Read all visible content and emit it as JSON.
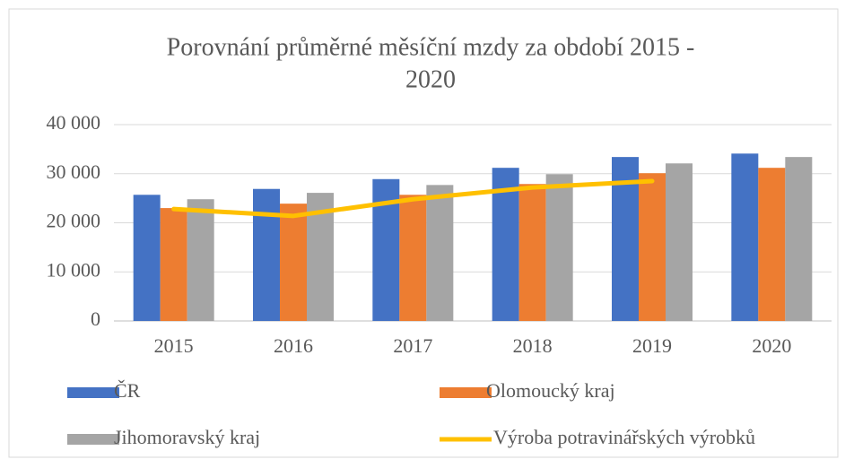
{
  "chart_data": {
    "type": "bar_line",
    "title": [
      "Porovnání průměrné měsíční mzdy za období 2015 -",
      "2020"
    ],
    "categories": [
      "2015",
      "2016",
      "2017",
      "2018",
      "2019",
      "2020"
    ],
    "series": [
      {
        "name": "ČR",
        "type": "bar",
        "color": "#4472c4",
        "values": [
          25700,
          26900,
          28900,
          31200,
          33400,
          34100
        ]
      },
      {
        "name": "Olomoucký kraj",
        "type": "bar",
        "color": "#ed7d31",
        "values": [
          23000,
          23900,
          25700,
          27900,
          30100,
          31200
        ]
      },
      {
        "name": "Jihomoravský kraj",
        "type": "bar",
        "color": "#a5a5a5",
        "values": [
          24800,
          26100,
          27700,
          29900,
          32100,
          33400
        ]
      },
      {
        "name": "Výroba potravinářských výrobků",
        "type": "line",
        "color": "#ffc000",
        "values": [
          22800,
          21400,
          24800,
          27200,
          28500,
          null
        ]
      }
    ],
    "ylim": [
      0,
      40000
    ],
    "yticks": [
      0,
      {
        "value": 10000,
        "label": "10 000"
      },
      {
        "value": 20000,
        "label": "20 000"
      },
      {
        "value": 30000,
        "label": "30 000"
      },
      {
        "value": 40000,
        "label": "40 000"
      }
    ],
    "grid": true,
    "legend": "bottom"
  }
}
